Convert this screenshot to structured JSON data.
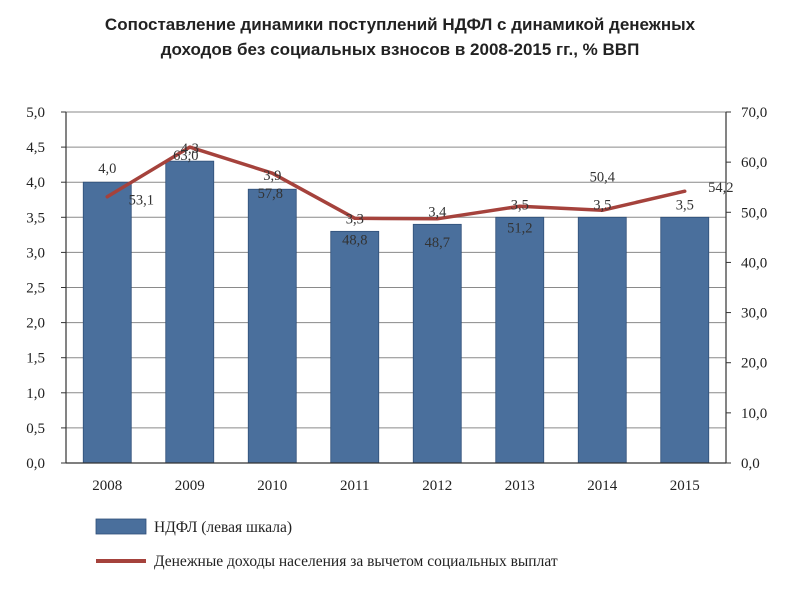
{
  "chart_data": {
    "type": "bar",
    "title_line1": "Сопоставление динамики поступлений НДФЛ с динамикой денежных",
    "title_line2": "доходов без социальных взносов в 2008-2015 гг., % ВВП",
    "categories": [
      "2008",
      "2009",
      "2010",
      "2011",
      "2012",
      "2013",
      "2014",
      "2015"
    ],
    "left_axis": {
      "ylim": [
        0,
        5.0
      ],
      "ticks": [
        "0,0",
        "0,5",
        "1,0",
        "1,5",
        "2,0",
        "2,5",
        "3,0",
        "3,5",
        "4,0",
        "4,5",
        "5,0"
      ]
    },
    "right_axis": {
      "ylim": [
        0,
        70.0
      ],
      "ticks": [
        "0,0",
        "10,0",
        "20,0",
        "30,0",
        "40,0",
        "50,0",
        "60,0",
        "70,0"
      ]
    },
    "series": [
      {
        "name": "НДФЛ (левая шкала)",
        "type": "bar",
        "axis": "left",
        "color": "#4a6f9c",
        "values": [
          4.0,
          4.3,
          3.9,
          3.3,
          3.4,
          3.5,
          3.5,
          3.5
        ],
        "labels": [
          "4,0",
          "4,3",
          "3,9",
          "3,3",
          "3,4",
          "3,5",
          "3,5",
          "3,5"
        ]
      },
      {
        "name": "Денежные доходы населения за вычетом социальных выплат",
        "type": "line",
        "axis": "right",
        "color": "#a5423c",
        "values": [
          53.1,
          63.0,
          57.8,
          48.8,
          48.7,
          51.2,
          50.4,
          54.2
        ],
        "labels": [
          "53,1",
          "63,0",
          "57,8",
          "48,8",
          "48,7",
          "51,2",
          "50,4",
          "54,2"
        ]
      }
    ],
    "grid": true,
    "legend_position": "bottom"
  }
}
